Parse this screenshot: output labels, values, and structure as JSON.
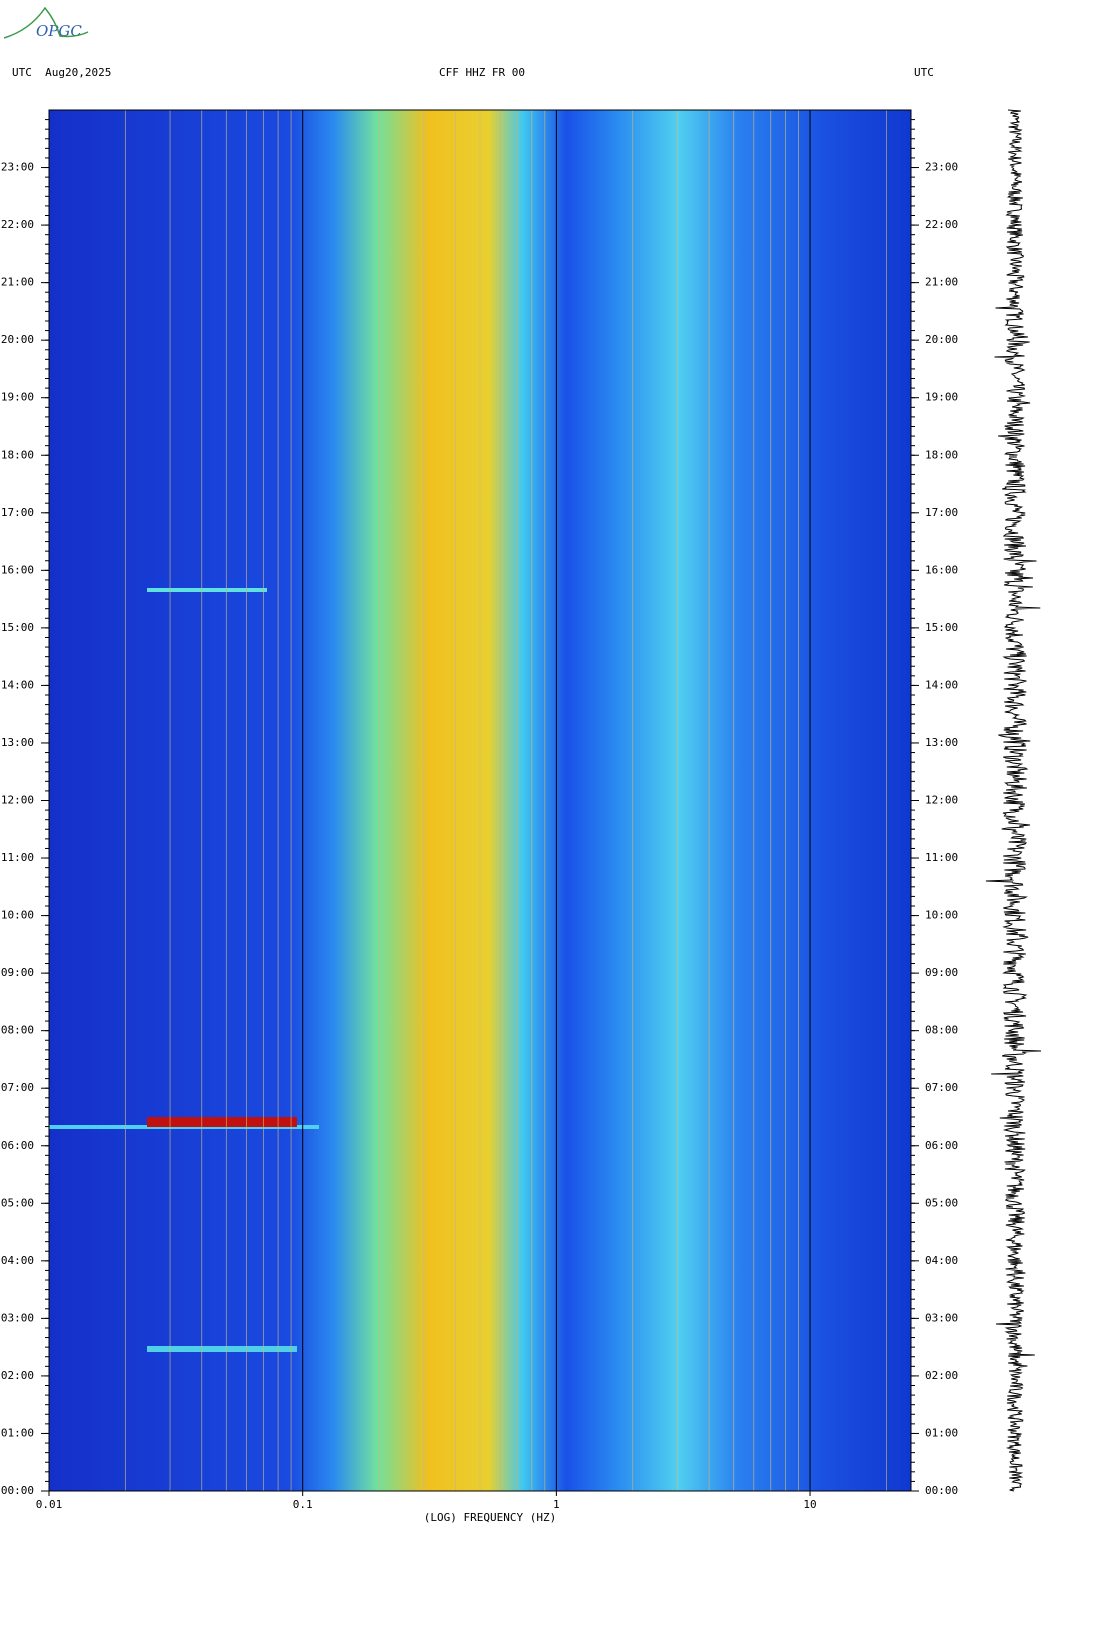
{
  "logo": "OPGC",
  "chart_data": {
    "type": "spectrogram",
    "title": "CFF HHZ FR 00",
    "left_header": "UTC  Aug20,2025",
    "right_header": "UTC",
    "xlabel": "(LOG) FREQUENCY (HZ)",
    "xscale": "log",
    "xlim": [
      0.01,
      25
    ],
    "xticks": [
      {
        "value": 0.01,
        "label": "0.01"
      },
      {
        "value": 0.1,
        "label": "0.1"
      },
      1,
      10
    ],
    "xminor": [
      0.02,
      0.03,
      0.04,
      0.05,
      0.06,
      0.07,
      0.08,
      0.09,
      0.2,
      0.3,
      0.4,
      0.5,
      0.6,
      0.7,
      0.8,
      0.9,
      2,
      3,
      4,
      5,
      6,
      7,
      8,
      9,
      20
    ],
    "ylim": [
      0,
      24
    ],
    "yticks": [
      {
        "value": 0,
        "label": "00:00"
      },
      {
        "value": 1,
        "label": "01:00"
      },
      {
        "value": 2,
        "label": "02:00"
      },
      {
        "value": 3,
        "label": "03:00"
      },
      {
        "value": 4,
        "label": "04:00"
      },
      {
        "value": 5,
        "label": "05:00"
      },
      {
        "value": 6,
        "label": "06:00"
      },
      {
        "value": 7,
        "label": "07:00"
      },
      {
        "value": 8,
        "label": "08:00"
      },
      {
        "value": 9,
        "label": "09:00"
      },
      {
        "value": 10,
        "label": "10:00"
      },
      {
        "value": 11,
        "label": "11:00"
      },
      {
        "value": 12,
        "label": "12:00"
      },
      {
        "value": 13,
        "label": "13:00"
      },
      {
        "value": 14,
        "label": "14:00"
      },
      {
        "value": 15,
        "label": "15:00"
      },
      {
        "value": 16,
        "label": "16:00"
      },
      {
        "value": 17,
        "label": "17:00"
      },
      {
        "value": 18,
        "label": "18:00"
      },
      {
        "value": 19,
        "label": "19:00"
      },
      {
        "value": 20,
        "label": "20:00"
      },
      {
        "value": 21,
        "label": "21:00"
      },
      {
        "value": 22,
        "label": "22:00"
      },
      {
        "value": 23,
        "label": "23:00"
      }
    ]
  }
}
